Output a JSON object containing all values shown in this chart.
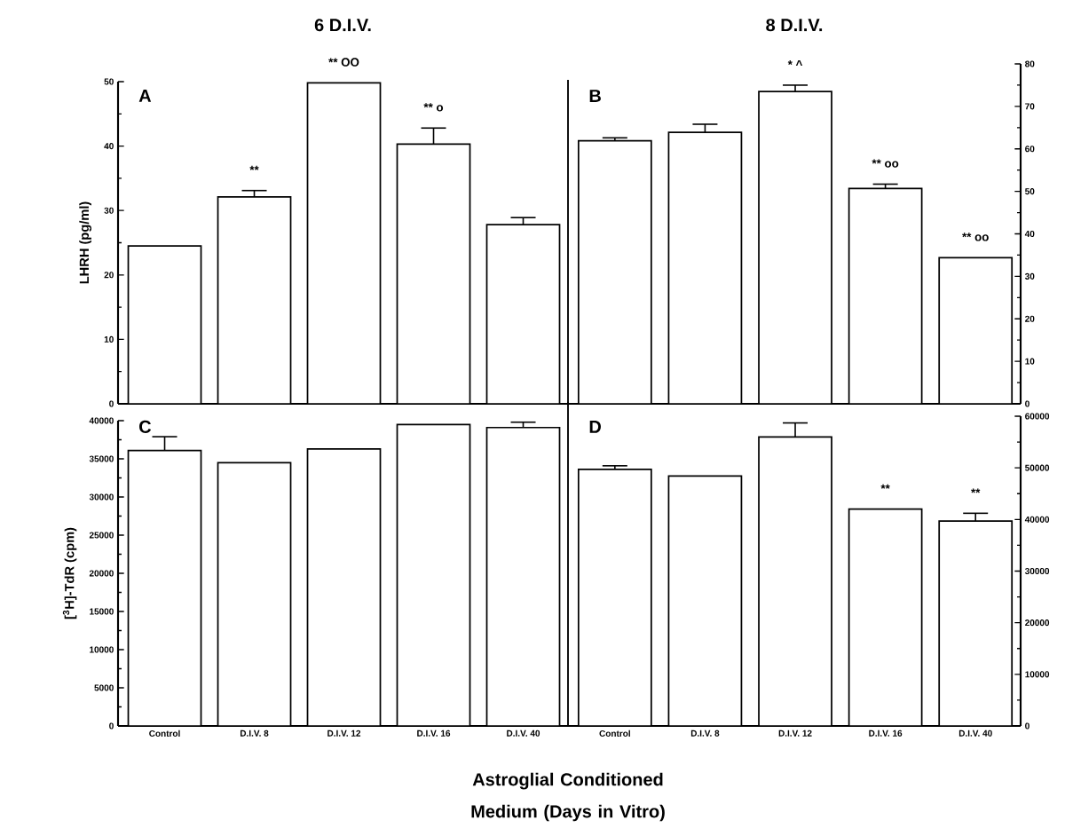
{
  "chart_data": [
    {
      "type": "bar",
      "title": "6 D.I.V.",
      "ylabel": "LHRH (pg/ml)",
      "categories": [
        null,
        null,
        null,
        null,
        null
      ],
      "values": [
        24.5,
        32.1,
        49.8,
        40.3,
        27.8
      ],
      "errors": [
        null,
        1.0,
        null,
        2.5,
        1.1
      ],
      "color": "#ffffff",
      "ylim": [
        0,
        50
      ],
      "yticks": [
        0,
        10,
        20,
        30,
        40,
        50
      ],
      "tick_labels": "y",
      "annotations": [
        "A",
        "**",
        "**  OO",
        "**  o"
      ]
    },
    {
      "type": "bar",
      "title": "8 D.I.V.",
      "categories": [
        null,
        null,
        null,
        null,
        null
      ],
      "values": [
        61.9,
        63.9,
        73.5,
        50.7,
        34.4
      ],
      "errors": [
        0.7,
        1.9,
        1.5,
        1.0,
        null
      ],
      "color": "#ffffff",
      "ylim": [
        0,
        80
      ],
      "yticks": [
        0,
        10,
        20,
        30,
        40,
        50,
        60,
        70,
        80
      ],
      "tick_labels": "y",
      "annotations": [
        "B",
        "*  ^",
        "**  oo",
        "**  oo"
      ]
    },
    {
      "type": "bar",
      "ylabel": "[$^{3}$H]-TdR (cpm)",
      "xlabel": "Astroglial Conditioned Medium (Days in Vitro)",
      "categories": [
        "Control",
        "D.I.V. 8",
        "D.I.V. 12",
        "D.I.V. 16",
        "D.I.V. 40"
      ],
      "values": [
        36100,
        34500,
        36300,
        39500,
        39100
      ],
      "errors": [
        1800,
        null,
        null,
        null,
        700
      ],
      "color": "#ffffff",
      "ylim": [
        0,
        40000
      ],
      "yticks": [
        0,
        5000,
        10000,
        15000,
        20000,
        25000,
        30000,
        35000,
        40000
      ],
      "annotations": [
        "C"
      ]
    },
    {
      "type": "bar",
      "categories": [
        "Control",
        "D.I.V. 8",
        "D.I.V. 12",
        "D.I.V. 16",
        "D.I.V. 40"
      ],
      "values": [
        49700,
        48400,
        56000,
        42000,
        39700
      ],
      "errors": [
        700,
        null,
        2700,
        null,
        1500
      ],
      "color": "#ffffff",
      "ylim": [
        0,
        60000
      ],
      "yticks": [
        0,
        10000,
        20000,
        30000,
        40000,
        50000,
        60000
      ],
      "annotations": [
        "D",
        "**",
        "**"
      ]
    }
  ]
}
